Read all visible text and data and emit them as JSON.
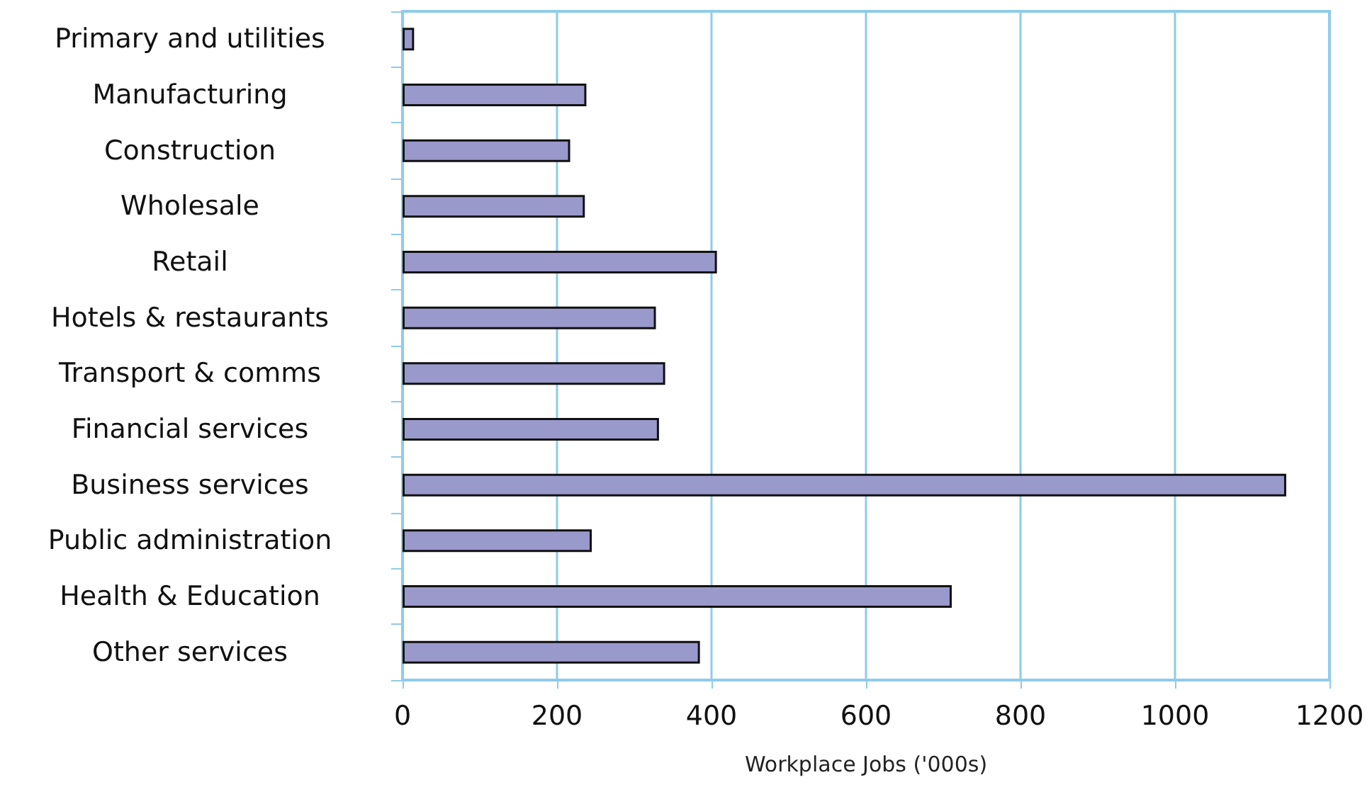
{
  "chart_data": {
    "type": "bar",
    "orientation": "horizontal",
    "xlabel": "Workplace Jobs ('000s)",
    "categories": [
      "Primary and utilities",
      "Manufacturing",
      "Construction",
      "Wholesale",
      "Retail",
      "Hotels & restaurants",
      "Transport & comms",
      "Financial services",
      "Business services",
      "Public administration",
      "Health & Education",
      "Other services"
    ],
    "values": [
      15,
      238,
      217,
      236,
      407,
      328,
      340,
      332,
      1144,
      245,
      711,
      385
    ],
    "color": "#9999cc",
    "xlim": [
      0,
      1200
    ],
    "xticks": [
      0,
      200,
      400,
      600,
      800,
      1000,
      1200
    ],
    "grid": "x"
  }
}
